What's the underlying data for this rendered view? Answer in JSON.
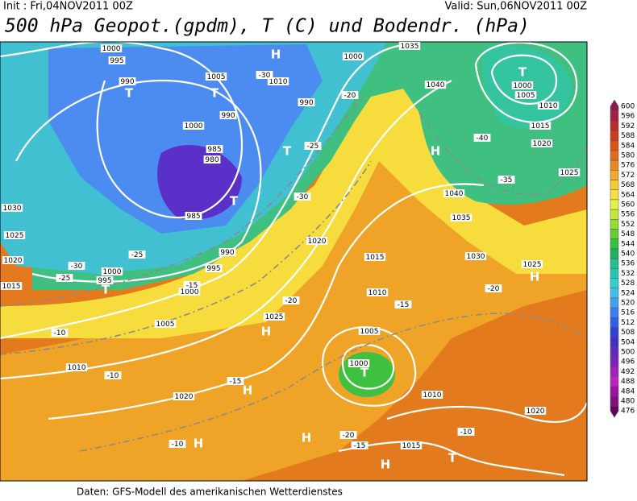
{
  "header": {
    "init": "Init : Fri,04NOV2011 00Z",
    "valid": "Valid: Sun,06NOV2011 00Z",
    "title": "500 hPa Geopot.(gpdm), T (C) und Bodendr. (hPa)"
  },
  "footer": "Daten: GFS-Modell des amerikanischen Wetterdienstes",
  "legend": {
    "ticks": [
      600,
      596,
      592,
      588,
      584,
      580,
      576,
      572,
      568,
      564,
      560,
      556,
      552,
      548,
      544,
      540,
      536,
      532,
      528,
      524,
      520,
      516,
      512,
      508,
      504,
      500,
      496,
      492,
      488,
      484,
      480,
      476
    ],
    "colors": [
      "#8a1a50",
      "#a52040",
      "#bd2a2a",
      "#cc3c1e",
      "#d95218",
      "#e26a18",
      "#ea8820",
      "#f2a828",
      "#f8c830",
      "#f8e040",
      "#e8f040",
      "#c4e838",
      "#98dc30",
      "#62d030",
      "#34c040",
      "#22b060",
      "#20c090",
      "#22c8b0",
      "#30d0d0",
      "#40c0e8",
      "#40a0f0",
      "#3880f0",
      "#3060e8",
      "#3040d8",
      "#4030c8",
      "#6028c0",
      "#8020c0",
      "#a020c0",
      "#c020c0",
      "#a010a0",
      "#801080",
      "#600860"
    ]
  },
  "map_labels": [
    1000,
    995,
    990,
    "T",
    1005,
    "T",
    1010,
    "H",
    1000,
    1035,
    1040,
    "T",
    1000,
    1005,
    1010,
    1015,
    1020,
    1025,
    "H",
    "T",
    990,
    990,
    1000,
    985,
    980,
    "T",
    985,
    990,
    995,
    1000,
    "T",
    995,
    1000,
    1030,
    1025,
    1020,
    1015,
    1005,
    1010,
    1020,
    "H",
    1025,
    "H",
    "H",
    1015,
    1010,
    1005,
    1000,
    "T",
    1010,
    1020,
    1015,
    "H",
    "T",
    "H",
    1030,
    1025,
    "H",
    1035,
    1040,
    1020,
    -30,
    -20,
    -25,
    -30,
    -20,
    -15,
    -15,
    -10,
    -10,
    -10,
    -20,
    -15,
    -10,
    -35,
    -40,
    -20,
    -30,
    -25,
    -15,
    -25
  ]
}
